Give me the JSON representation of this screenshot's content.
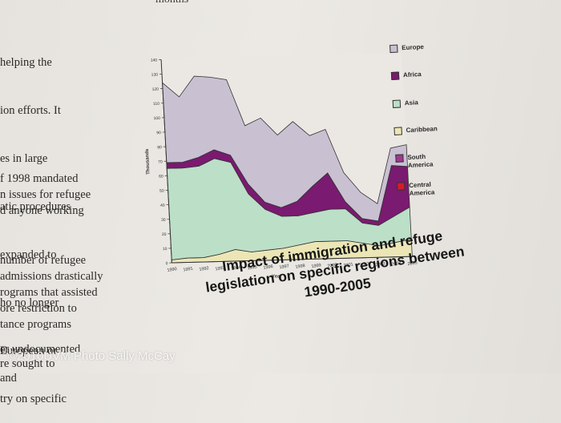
{
  "page": {
    "top_word": "months",
    "left_lines": [
      "helping the",
      "ion efforts. It",
      "es in large",
      "atic procedures",
      "expanded to",
      "ho no longer",
      "European or",
      "try on specific"
    ],
    "para2_lines": [
      "f 1998 mandated",
      "n issues for refugee",
      "d anyone working"
    ],
    "para3_lines": [
      "number of refugee",
      "admissions drastically",
      "rograms that assisted",
      "ore restriction to",
      "tance programs"
    ],
    "para4_lines": [
      "er undocumented",
      "re sought to",
      "and"
    ],
    "caption_lines": [
      "Impact of immigration and refuge",
      "legislation on specific regions between",
      "1990-2005"
    ],
    "watermark": "©2010UVM Photo Sally McCay"
  },
  "chart_data": {
    "type": "area",
    "title": "",
    "xlabel": "Year",
    "ylabel": "Thousands",
    "categories": [
      "1990",
      "1991",
      "1992",
      "1993",
      "1994",
      "1995",
      "1996",
      "1997",
      "1998",
      "1999",
      "2000",
      "2001",
      "2002",
      "2003",
      "2004",
      "2005"
    ],
    "ylim": [
      0,
      140
    ],
    "y_ticks": [
      0,
      10,
      20,
      30,
      40,
      50,
      60,
      70,
      80,
      90,
      100,
      110,
      120,
      130,
      140
    ],
    "series": [
      {
        "name": "Caribbean",
        "color": "#ece6b6",
        "values": [
          2,
          3,
          3,
          5,
          8,
          6,
          7,
          8,
          10,
          12,
          12,
          12,
          10,
          8,
          10,
          12
        ]
      },
      {
        "name": "Asia",
        "color": "#bcdfc8",
        "values": [
          63,
          62,
          63,
          66,
          60,
          40,
          28,
          22,
          20,
          20,
          22,
          22,
          14,
          14,
          18,
          22
        ]
      },
      {
        "name": "Africa",
        "color": "#7a1a70",
        "values": [
          4,
          4,
          6,
          6,
          5,
          7,
          5,
          6,
          10,
          18,
          25,
          5,
          3,
          3,
          35,
          28
        ]
      },
      {
        "name": "Europe",
        "color": "#c9c1d2",
        "values": [
          55,
          45,
          56,
          50,
          52,
          40,
          58,
          50,
          55,
          35,
          30,
          20,
          18,
          12,
          12,
          15
        ]
      },
      {
        "name": "South America",
        "color": "#9e3a8e",
        "values": [
          0,
          0,
          0,
          0,
          0,
          0,
          0,
          0,
          0,
          0,
          0,
          0,
          0,
          0,
          0,
          0
        ]
      },
      {
        "name": "Central America",
        "color": "#d11e2a",
        "values": [
          0,
          0,
          0,
          0,
          0,
          0,
          0,
          0,
          0,
          0,
          0,
          0,
          0,
          0,
          0,
          0
        ]
      }
    ],
    "legend": [
      {
        "label": "Europe",
        "color": "#c9c1d2"
      },
      {
        "label": "Africa",
        "color": "#7a1a70"
      },
      {
        "label": "Asia",
        "color": "#bcdfc8"
      },
      {
        "label": "Caribbean",
        "color": "#ece6b6"
      },
      {
        "label": "South America",
        "color": "#9e3a8e"
      },
      {
        "label": "Central America",
        "color": "#d11e2a"
      }
    ],
    "legend_position": "right",
    "grid": false
  }
}
